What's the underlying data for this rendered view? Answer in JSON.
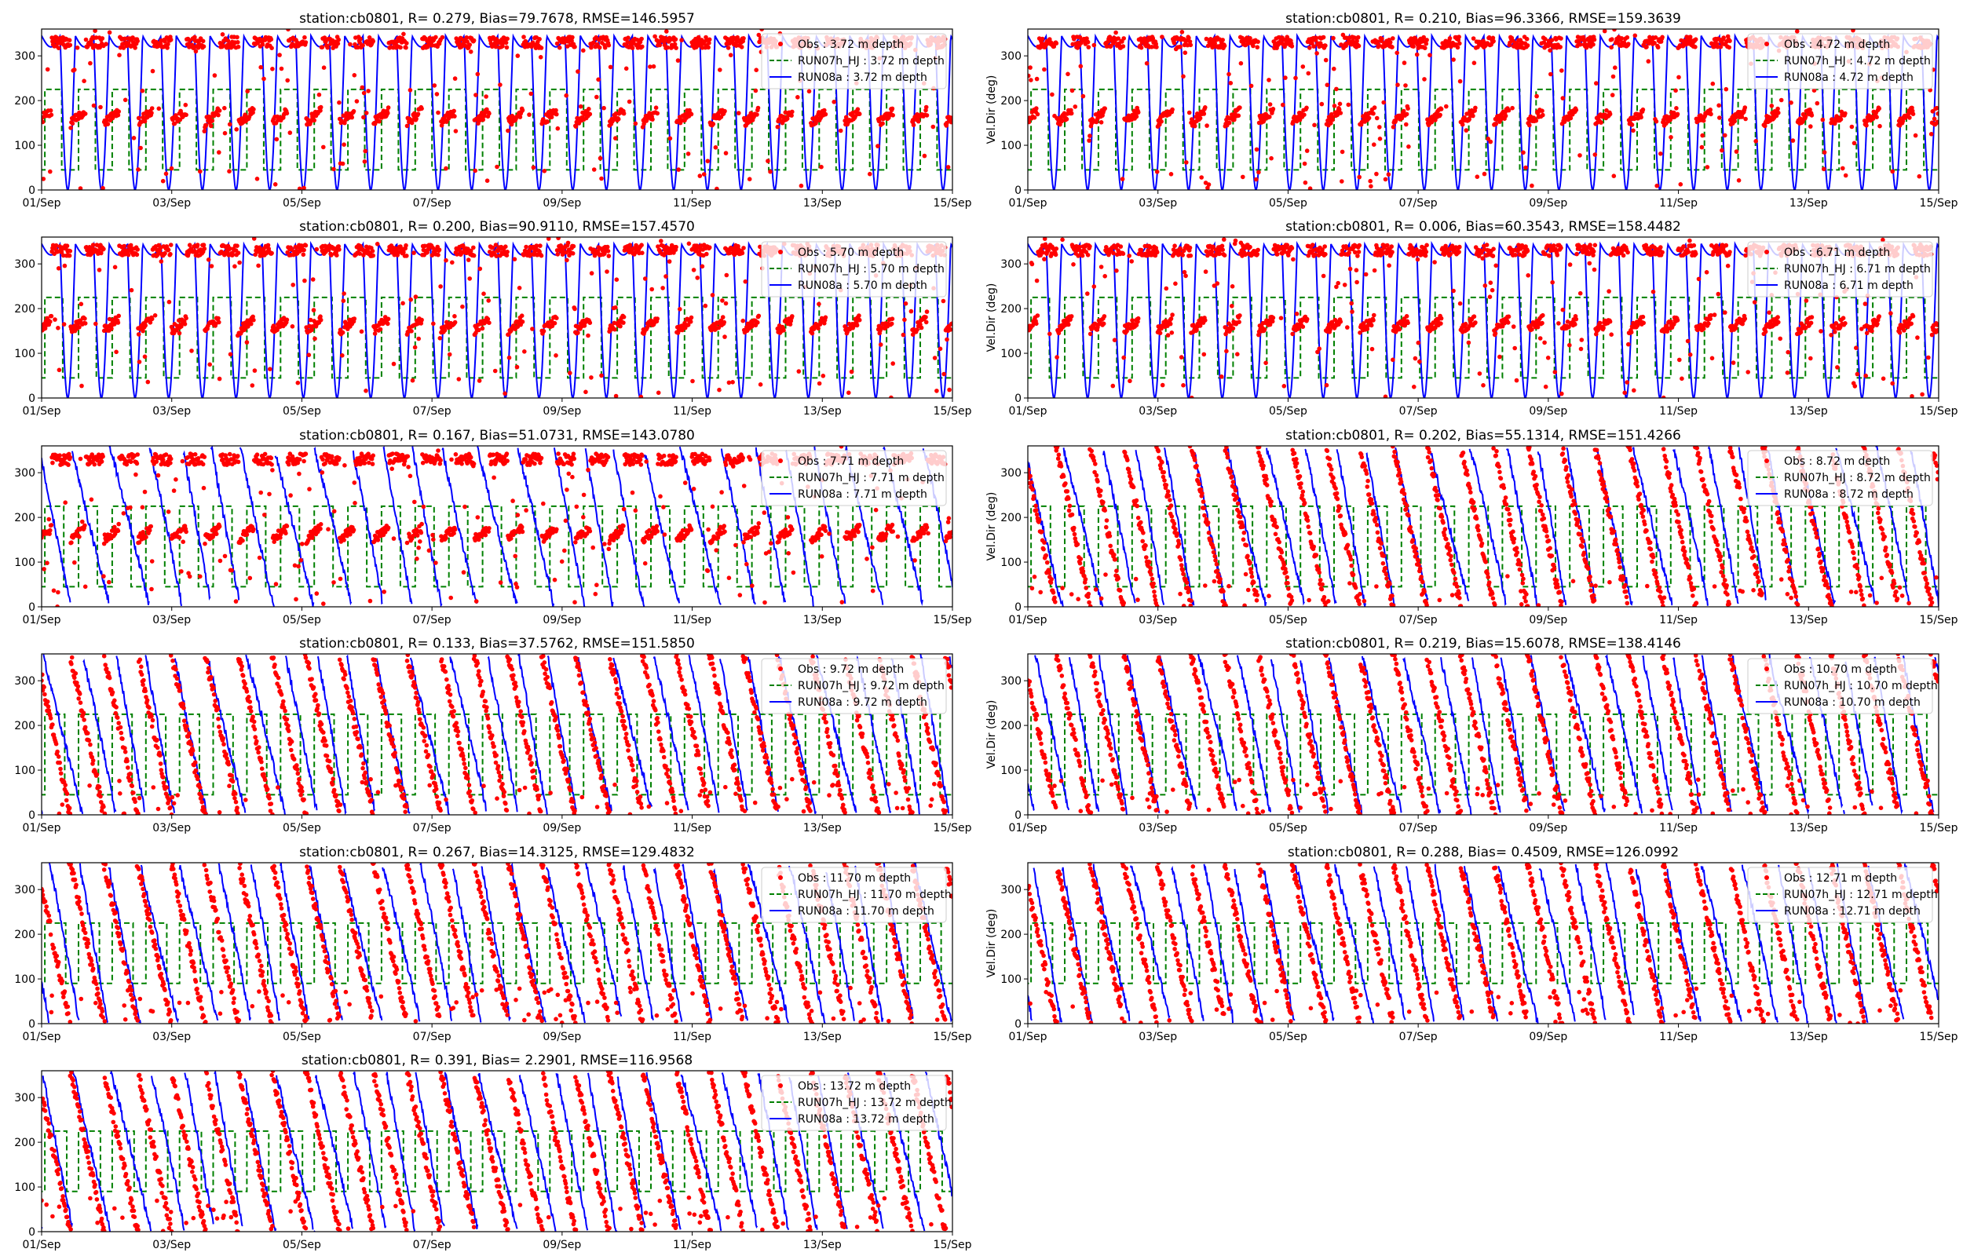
{
  "figure": {
    "colors": {
      "obs": "#ff0000",
      "run07": "#008000",
      "run08": "#0000ff",
      "axes": "#000000"
    }
  },
  "chart_data": [
    {
      "type": "line",
      "title": "station:cb0801, R= 0.279, Bias=79.7678, RMSE=146.5957",
      "ylabel": "",
      "x_ticks": [
        "01/Sep",
        "03/Sep",
        "05/Sep",
        "07/Sep",
        "09/Sep",
        "11/Sep",
        "13/Sep",
        "15/Sep"
      ],
      "y_ticks": [
        "0",
        "100",
        "200",
        "300"
      ],
      "ylim": [
        0,
        360
      ],
      "xlim_days": [
        0,
        14
      ],
      "legend": "top-right",
      "series": [
        {
          "name": "Obs : 3.72 m depth",
          "style": "dots"
        },
        {
          "name": "RUN07h_HJ : 3.72 m depth",
          "style": "dashed"
        },
        {
          "name": "RUN08a : 3.72 m depth",
          "style": "solid"
        }
      ]
    },
    {
      "type": "line",
      "title": "station:cb0801, R= 0.210, Bias=96.3366, RMSE=159.3639",
      "ylabel": "Vel.Dir (deg)",
      "x_ticks": [
        "01/Sep",
        "03/Sep",
        "05/Sep",
        "07/Sep",
        "09/Sep",
        "11/Sep",
        "13/Sep",
        "15/Sep"
      ],
      "y_ticks": [
        "0",
        "100",
        "200",
        "300"
      ],
      "ylim": [
        0,
        360
      ],
      "xlim_days": [
        0,
        14
      ],
      "legend": "top-right",
      "series": [
        {
          "name": "Obs : 4.72 m depth",
          "style": "dots"
        },
        {
          "name": "RUN07h_HJ : 4.72 m depth",
          "style": "dashed"
        },
        {
          "name": "RUN08a : 4.72 m depth",
          "style": "solid"
        }
      ]
    },
    {
      "type": "line",
      "title": "station:cb0801, R= 0.200, Bias=90.9110, RMSE=157.4570",
      "ylabel": "",
      "x_ticks": [
        "01/Sep",
        "03/Sep",
        "05/Sep",
        "07/Sep",
        "09/Sep",
        "11/Sep",
        "13/Sep",
        "15/Sep"
      ],
      "y_ticks": [
        "0",
        "100",
        "200",
        "300"
      ],
      "ylim": [
        0,
        360
      ],
      "xlim_days": [
        0,
        14
      ],
      "legend": "top-right",
      "series": [
        {
          "name": "Obs : 5.70 m depth",
          "style": "dots"
        },
        {
          "name": "RUN07h_HJ : 5.70 m depth",
          "style": "dashed"
        },
        {
          "name": "RUN08a : 5.70 m depth",
          "style": "solid"
        }
      ]
    },
    {
      "type": "line",
      "title": "station:cb0801, R= 0.006, Bias=60.3543, RMSE=158.4482",
      "ylabel": "Vel.Dir (deg)",
      "x_ticks": [
        "01/Sep",
        "03/Sep",
        "05/Sep",
        "07/Sep",
        "09/Sep",
        "11/Sep",
        "13/Sep",
        "15/Sep"
      ],
      "y_ticks": [
        "0",
        "100",
        "200",
        "300"
      ],
      "ylim": [
        0,
        360
      ],
      "xlim_days": [
        0,
        14
      ],
      "legend": "top-right",
      "series": [
        {
          "name": "Obs : 6.71 m depth",
          "style": "dots"
        },
        {
          "name": "RUN07h_HJ : 6.71 m depth",
          "style": "dashed"
        },
        {
          "name": "RUN08a : 6.71 m depth",
          "style": "solid"
        }
      ]
    },
    {
      "type": "line",
      "title": "station:cb0801, R= 0.167, Bias=51.0731, RMSE=143.0780",
      "ylabel": "",
      "x_ticks": [
        "01/Sep",
        "03/Sep",
        "05/Sep",
        "07/Sep",
        "09/Sep",
        "11/Sep",
        "13/Sep",
        "15/Sep"
      ],
      "y_ticks": [
        "0",
        "100",
        "200",
        "300"
      ],
      "ylim": [
        0,
        360
      ],
      "xlim_days": [
        0,
        14
      ],
      "legend": "top-right",
      "series": [
        {
          "name": "Obs : 7.71 m depth",
          "style": "dots"
        },
        {
          "name": "RUN07h_HJ : 7.71 m depth",
          "style": "dashed"
        },
        {
          "name": "RUN08a : 7.71 m depth",
          "style": "solid"
        }
      ]
    },
    {
      "type": "line",
      "title": "station:cb0801, R= 0.202, Bias=55.1314, RMSE=151.4266",
      "ylabel": "Vel.Dir (deg)",
      "x_ticks": [
        "01/Sep",
        "03/Sep",
        "05/Sep",
        "07/Sep",
        "09/Sep",
        "11/Sep",
        "13/Sep",
        "15/Sep"
      ],
      "y_ticks": [
        "0",
        "100",
        "200",
        "300"
      ],
      "ylim": [
        0,
        360
      ],
      "xlim_days": [
        0,
        14
      ],
      "legend": "top-right",
      "series": [
        {
          "name": "Obs : 8.72 m depth",
          "style": "dots"
        },
        {
          "name": "RUN07h_HJ : 8.72 m depth",
          "style": "dashed"
        },
        {
          "name": "RUN08a : 8.72 m depth",
          "style": "solid"
        }
      ]
    },
    {
      "type": "line",
      "title": "station:cb0801, R= 0.133, Bias=37.5762, RMSE=151.5850",
      "ylabel": "",
      "x_ticks": [
        "01/Sep",
        "03/Sep",
        "05/Sep",
        "07/Sep",
        "09/Sep",
        "11/Sep",
        "13/Sep",
        "15/Sep"
      ],
      "y_ticks": [
        "0",
        "100",
        "200",
        "300"
      ],
      "ylim": [
        0,
        360
      ],
      "xlim_days": [
        0,
        14
      ],
      "legend": "top-right",
      "series": [
        {
          "name": "Obs : 9.72 m depth",
          "style": "dots"
        },
        {
          "name": "RUN07h_HJ : 9.72 m depth",
          "style": "dashed"
        },
        {
          "name": "RUN08a : 9.72 m depth",
          "style": "solid"
        }
      ]
    },
    {
      "type": "line",
      "title": "station:cb0801, R= 0.219, Bias=15.6078, RMSE=138.4146",
      "ylabel": "Vel.Dir (deg)",
      "x_ticks": [
        "01/Sep",
        "03/Sep",
        "05/Sep",
        "07/Sep",
        "09/Sep",
        "11/Sep",
        "13/Sep",
        "15/Sep"
      ],
      "y_ticks": [
        "0",
        "100",
        "200",
        "300"
      ],
      "ylim": [
        0,
        360
      ],
      "xlim_days": [
        0,
        14
      ],
      "legend": "top-right",
      "series": [
        {
          "name": "Obs : 10.70 m depth",
          "style": "dots"
        },
        {
          "name": "RUN07h_HJ : 10.70 m depth",
          "style": "dashed"
        },
        {
          "name": "RUN08a : 10.70 m depth",
          "style": "solid"
        }
      ]
    },
    {
      "type": "line",
      "title": "station:cb0801, R= 0.267, Bias=14.3125, RMSE=129.4832",
      "ylabel": "",
      "x_ticks": [
        "01/Sep",
        "03/Sep",
        "05/Sep",
        "07/Sep",
        "09/Sep",
        "11/Sep",
        "13/Sep",
        "15/Sep"
      ],
      "y_ticks": [
        "0",
        "100",
        "200",
        "300"
      ],
      "ylim": [
        0,
        360
      ],
      "xlim_days": [
        0,
        14
      ],
      "legend": "top-right",
      "series": [
        {
          "name": "Obs : 11.70 m depth",
          "style": "dots"
        },
        {
          "name": "RUN07h_HJ : 11.70 m depth",
          "style": "dashed"
        },
        {
          "name": "RUN08a : 11.70 m depth",
          "style": "solid"
        }
      ]
    },
    {
      "type": "line",
      "title": "station:cb0801, R= 0.288, Bias= 0.4509, RMSE=126.0992",
      "ylabel": "Vel.Dir (deg)",
      "x_ticks": [
        "01/Sep",
        "03/Sep",
        "05/Sep",
        "07/Sep",
        "09/Sep",
        "11/Sep",
        "13/Sep",
        "15/Sep"
      ],
      "y_ticks": [
        "0",
        "100",
        "200",
        "300"
      ],
      "ylim": [
        0,
        360
      ],
      "xlim_days": [
        0,
        14
      ],
      "legend": "top-right",
      "series": [
        {
          "name": "Obs : 12.71 m depth",
          "style": "dots"
        },
        {
          "name": "RUN07h_HJ : 12.71 m depth",
          "style": "dashed"
        },
        {
          "name": "RUN08a : 12.71 m depth",
          "style": "solid"
        }
      ]
    },
    {
      "type": "line",
      "title": "station:cb0801, R= 0.391, Bias= 2.2901, RMSE=116.9568",
      "ylabel": "",
      "x_ticks": [
        "01/Sep",
        "03/Sep",
        "05/Sep",
        "07/Sep",
        "09/Sep",
        "11/Sep",
        "13/Sep",
        "15/Sep"
      ],
      "y_ticks": [
        "0",
        "100",
        "200",
        "300"
      ],
      "ylim": [
        0,
        360
      ],
      "xlim_days": [
        0,
        14
      ],
      "legend": "top-right",
      "series": [
        {
          "name": "Obs : 13.72 m depth",
          "style": "dots"
        },
        {
          "name": "RUN07h_HJ : 13.72 m depth",
          "style": "dashed"
        },
        {
          "name": "RUN08a : 13.72 m depth",
          "style": "solid"
        }
      ]
    }
  ]
}
